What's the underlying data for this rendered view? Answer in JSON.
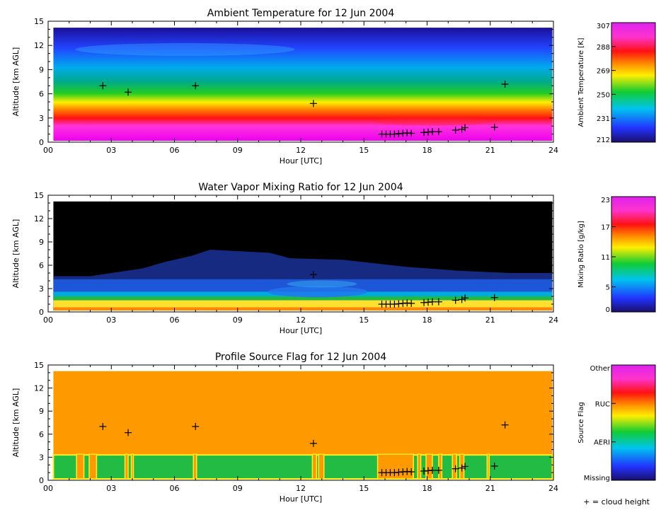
{
  "legend_note": "+ = cloud height",
  "colors": {
    "background": "#ffffff",
    "axis": "#000000",
    "flag_background": "#ff9900",
    "flag_aerh": "#22bb44",
    "flag_edge": "#ffee22",
    "wv_top": "#000000"
  },
  "chart_data": [
    {
      "type": "heatmap",
      "title": "Ambient Temperature for 12 Jun 2004",
      "xlabel": "Hour [UTC]",
      "ylabel": "Altitude [km AGL]",
      "x_ticks": [
        "00",
        "03",
        "06",
        "09",
        "12",
        "15",
        "18",
        "21",
        "24"
      ],
      "y_ticks": [
        "0",
        "3",
        "6",
        "9",
        "12",
        "15"
      ],
      "xlim": [
        0,
        24
      ],
      "ylim": [
        0,
        15
      ],
      "data_top_km": 14.2,
      "colorbar": {
        "label": "Ambient Temperature [K]",
        "ticks": [
          "212",
          "231",
          "250",
          "269",
          "288",
          "307"
        ],
        "range": [
          212,
          307
        ]
      },
      "cloud_height": [
        [
          2.6,
          7.0
        ],
        [
          3.8,
          6.2
        ],
        [
          7.0,
          7.0
        ],
        [
          12.6,
          4.8
        ],
        [
          21.7,
          7.2
        ],
        [
          15.85,
          1.0
        ],
        [
          16.05,
          1.0
        ],
        [
          16.25,
          1.0
        ],
        [
          16.45,
          1.0
        ],
        [
          16.65,
          1.05
        ],
        [
          16.85,
          1.1
        ],
        [
          17.05,
          1.15
        ],
        [
          17.25,
          1.1
        ],
        [
          17.85,
          1.2
        ],
        [
          18.05,
          1.25
        ],
        [
          18.25,
          1.3
        ],
        [
          18.55,
          1.3
        ],
        [
          19.35,
          1.5
        ],
        [
          19.65,
          1.6
        ],
        [
          19.8,
          1.8
        ],
        [
          21.2,
          1.85
        ]
      ]
    },
    {
      "type": "heatmap",
      "title": "Water Vapor Mixing Ratio for 12 Jun 2004",
      "xlabel": "Hour [UTC]",
      "ylabel": "Altitude [km AGL]",
      "x_ticks": [
        "00",
        "03",
        "06",
        "09",
        "12",
        "15",
        "18",
        "21",
        "24"
      ],
      "y_ticks": [
        "0",
        "3",
        "6",
        "9",
        "12",
        "15"
      ],
      "xlim": [
        0,
        24
      ],
      "ylim": [
        0,
        15
      ],
      "data_top_km": 14.2,
      "colorbar": {
        "label": "Mixing Ratio [g/kg]",
        "ticks": [
          "0",
          "5",
          "11",
          "17",
          "23"
        ],
        "range": [
          0,
          23
        ]
      },
      "cloud_height": [
        [
          12.6,
          4.8
        ],
        [
          15.85,
          1.0
        ],
        [
          16.05,
          1.0
        ],
        [
          16.25,
          1.0
        ],
        [
          16.45,
          1.0
        ],
        [
          16.65,
          1.05
        ],
        [
          16.85,
          1.1
        ],
        [
          17.05,
          1.15
        ],
        [
          17.25,
          1.1
        ],
        [
          17.85,
          1.2
        ],
        [
          18.05,
          1.25
        ],
        [
          18.25,
          1.3
        ],
        [
          18.55,
          1.3
        ],
        [
          19.35,
          1.5
        ],
        [
          19.65,
          1.6
        ],
        [
          19.8,
          1.8
        ],
        [
          21.2,
          1.85
        ]
      ]
    },
    {
      "type": "heatmap",
      "title": "Profile Source Flag for 12 Jun 2004",
      "xlabel": "Hour [UTC]",
      "ylabel": "Altitude [km AGL]",
      "x_ticks": [
        "00",
        "03",
        "06",
        "09",
        "12",
        "15",
        "18",
        "21",
        "24"
      ],
      "y_ticks": [
        "0",
        "3",
        "6",
        "9",
        "12",
        "15"
      ],
      "xlim": [
        0,
        24
      ],
      "ylim": [
        0,
        15
      ],
      "data_top_km": 14.2,
      "aerh_top_km": 3.3,
      "aerh_gaps_hours": [
        [
          1.35,
          1.7
        ],
        [
          1.95,
          2.3
        ],
        [
          3.65,
          3.8
        ],
        [
          3.95,
          4.05
        ],
        [
          6.9,
          7.05
        ],
        [
          12.55,
          12.75
        ],
        [
          12.85,
          13.1
        ],
        [
          15.65,
          17.35
        ],
        [
          17.55,
          17.7
        ],
        [
          17.95,
          18.25
        ],
        [
          18.55,
          18.7
        ],
        [
          19.2,
          19.4
        ],
        [
          19.55,
          19.75
        ],
        [
          20.85,
          20.95
        ]
      ],
      "colorbar": {
        "label": "Source Flag",
        "ticks": [
          "Missing",
          "AERI",
          "RUC",
          "Other"
        ]
      },
      "cloud_height": [
        [
          2.6,
          7.0
        ],
        [
          3.8,
          6.2
        ],
        [
          7.0,
          7.0
        ],
        [
          12.6,
          4.8
        ],
        [
          21.7,
          7.2
        ],
        [
          15.85,
          1.0
        ],
        [
          16.05,
          1.0
        ],
        [
          16.25,
          1.0
        ],
        [
          16.45,
          1.0
        ],
        [
          16.65,
          1.05
        ],
        [
          16.85,
          1.1
        ],
        [
          17.05,
          1.15
        ],
        [
          17.25,
          1.1
        ],
        [
          17.85,
          1.2
        ],
        [
          18.05,
          1.25
        ],
        [
          18.25,
          1.3
        ],
        [
          18.55,
          1.3
        ],
        [
          19.35,
          1.5
        ],
        [
          19.65,
          1.6
        ],
        [
          19.8,
          1.8
        ],
        [
          21.2,
          1.85
        ]
      ]
    }
  ]
}
